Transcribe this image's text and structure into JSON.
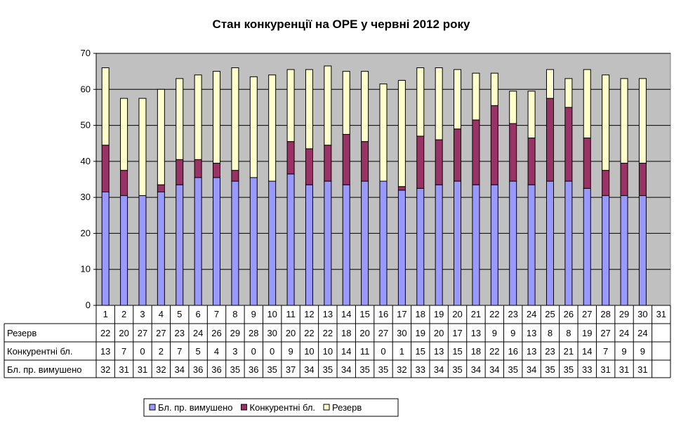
{
  "chart_data": {
    "type": "bar",
    "stacked": true,
    "title": "Стан конкуренції на ОРЕ  у червні 2012 року",
    "categories": [
      "1",
      "2",
      "3",
      "4",
      "5",
      "6",
      "7",
      "8",
      "9",
      "10",
      "11",
      "12",
      "13",
      "14",
      "15",
      "16",
      "17",
      "18",
      "19",
      "20",
      "21",
      "22",
      "23",
      "24",
      "25",
      "26",
      "27",
      "28",
      "29",
      "30",
      "31"
    ],
    "ylim": [
      0,
      70
    ],
    "yticks": [
      0,
      10,
      20,
      30,
      40,
      50,
      60,
      70
    ],
    "grid": true,
    "legend_position": "bottom",
    "series": [
      {
        "name": "Бл. пр. вимушено",
        "color": "#9999ff",
        "values": [
          31.5,
          30.5,
          30.5,
          31.5,
          33.5,
          35.5,
          35.5,
          34.5,
          35.5,
          34.5,
          36.5,
          33.5,
          34.5,
          33.5,
          34.5,
          34.5,
          32,
          32.5,
          33.5,
          34.5,
          33.5,
          33.5,
          34.5,
          33.5,
          34.5,
          34.5,
          32.5,
          30.5,
          30.5,
          30.5,
          null
        ],
        "table_values": [
          "32",
          "31",
          "31",
          "32",
          "34",
          "36",
          "36",
          "35",
          "36",
          "35",
          "37",
          "34",
          "35",
          "34",
          "35",
          "35",
          "32",
          "33",
          "34",
          "35",
          "34",
          "34",
          "35",
          "34",
          "35",
          "35",
          "33",
          "31",
          "31",
          "31",
          ""
        ]
      },
      {
        "name": "Конкурентні бл.",
        "color": "#993366",
        "values": [
          13,
          7,
          0,
          2,
          7,
          5,
          4,
          3,
          0,
          0,
          9,
          10,
          10,
          14,
          11,
          0,
          1,
          14.5,
          12.5,
          14.5,
          18,
          22,
          16,
          13,
          23,
          20.5,
          14,
          7,
          9,
          9,
          null
        ],
        "table_values": [
          "13",
          "7",
          "0",
          "2",
          "7",
          "5",
          "4",
          "3",
          "0",
          "0",
          "9",
          "10",
          "10",
          "14",
          "11",
          "0",
          "1",
          "15",
          "13",
          "15",
          "18",
          "22",
          "16",
          "13",
          "23",
          "21",
          "14",
          "7",
          "9",
          "9",
          ""
        ]
      },
      {
        "name": "Резерв",
        "color": "#ffffcc",
        "values": [
          21.5,
          20,
          27,
          26.5,
          22.5,
          23.5,
          25.5,
          28.5,
          28,
          29.5,
          20,
          22,
          22,
          17.5,
          19.5,
          27,
          29.5,
          19,
          20,
          16.5,
          13,
          9,
          9,
          13,
          8,
          8,
          19,
          26.5,
          23.5,
          23.5,
          null
        ],
        "table_values": [
          "22",
          "20",
          "27",
          "27",
          "23",
          "24",
          "26",
          "29",
          "28",
          "30",
          "20",
          "22",
          "22",
          "18",
          "20",
          "27",
          "30",
          "19",
          "20",
          "17",
          "13",
          "9",
          "9",
          "13",
          "8",
          "8",
          "19",
          "27",
          "24",
          "24",
          ""
        ]
      }
    ]
  }
}
